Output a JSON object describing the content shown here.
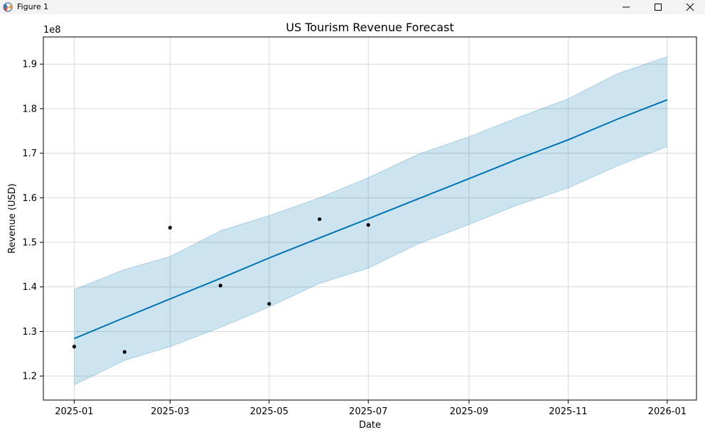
{
  "window": {
    "title": "Figure 1",
    "icons": {
      "app": "matplotlib-icon",
      "minimize": "minimize-icon",
      "maximize": "maximize-icon",
      "close": "close-icon"
    }
  },
  "colors": {
    "line": "#0072B2",
    "band": "#0072B2",
    "points": "#000000",
    "grid": "#d9d9d9"
  },
  "chart_data": {
    "type": "line",
    "title": "US Tourism Revenue Forecast",
    "xlabel": "Date",
    "ylabel": "Revenue (USD)",
    "y_offset_label": "1e8",
    "grid": true,
    "legend": "none",
    "xlim": [
      "2024-12-13",
      "2026-01-19"
    ],
    "ylim": [
      1.146,
      1.961
    ],
    "x_ticks": [
      {
        "date": "2025-01-01",
        "label": "2025-01"
      },
      {
        "date": "2025-03-01",
        "label": "2025-03"
      },
      {
        "date": "2025-05-01",
        "label": "2025-05"
      },
      {
        "date": "2025-07-01",
        "label": "2025-07"
      },
      {
        "date": "2025-09-01",
        "label": "2025-09"
      },
      {
        "date": "2025-11-01",
        "label": "2025-11"
      },
      {
        "date": "2026-01-01",
        "label": "2026-01"
      }
    ],
    "y_ticks": [
      {
        "value": 1.2,
        "label": "1.2"
      },
      {
        "value": 1.3,
        "label": "1.3"
      },
      {
        "value": 1.4,
        "label": "1.4"
      },
      {
        "value": 1.5,
        "label": "1.5"
      },
      {
        "value": 1.6,
        "label": "1.6"
      },
      {
        "value": 1.7,
        "label": "1.7"
      },
      {
        "value": 1.8,
        "label": "1.8"
      },
      {
        "value": 1.9,
        "label": "1.9"
      }
    ],
    "forecast": {
      "dates": [
        "2025-01-01",
        "2025-02-01",
        "2025-03-01",
        "2025-04-01",
        "2025-05-01",
        "2025-06-01",
        "2025-07-01",
        "2025-08-01",
        "2025-09-01",
        "2025-10-01",
        "2025-11-01",
        "2025-12-01",
        "2026-01-01"
      ],
      "yhat": [
        1.284,
        1.331,
        1.373,
        1.419,
        1.465,
        1.51,
        1.553,
        1.598,
        1.643,
        1.687,
        1.73,
        1.776,
        1.82
      ],
      "lower": [
        1.18,
        1.235,
        1.266,
        1.309,
        1.355,
        1.408,
        1.442,
        1.497,
        1.54,
        1.584,
        1.622,
        1.671,
        1.715
      ],
      "upper": [
        1.394,
        1.439,
        1.468,
        1.526,
        1.56,
        1.6,
        1.645,
        1.698,
        1.737,
        1.78,
        1.822,
        1.878,
        1.917
      ]
    },
    "observed": {
      "dates": [
        "2025-01-01",
        "2025-02-01",
        "2025-03-01",
        "2025-04-01",
        "2025-05-01",
        "2025-06-01",
        "2025-07-01"
      ],
      "values": [
        1.266,
        1.254,
        1.533,
        1.403,
        1.362,
        1.552,
        1.539
      ]
    }
  }
}
